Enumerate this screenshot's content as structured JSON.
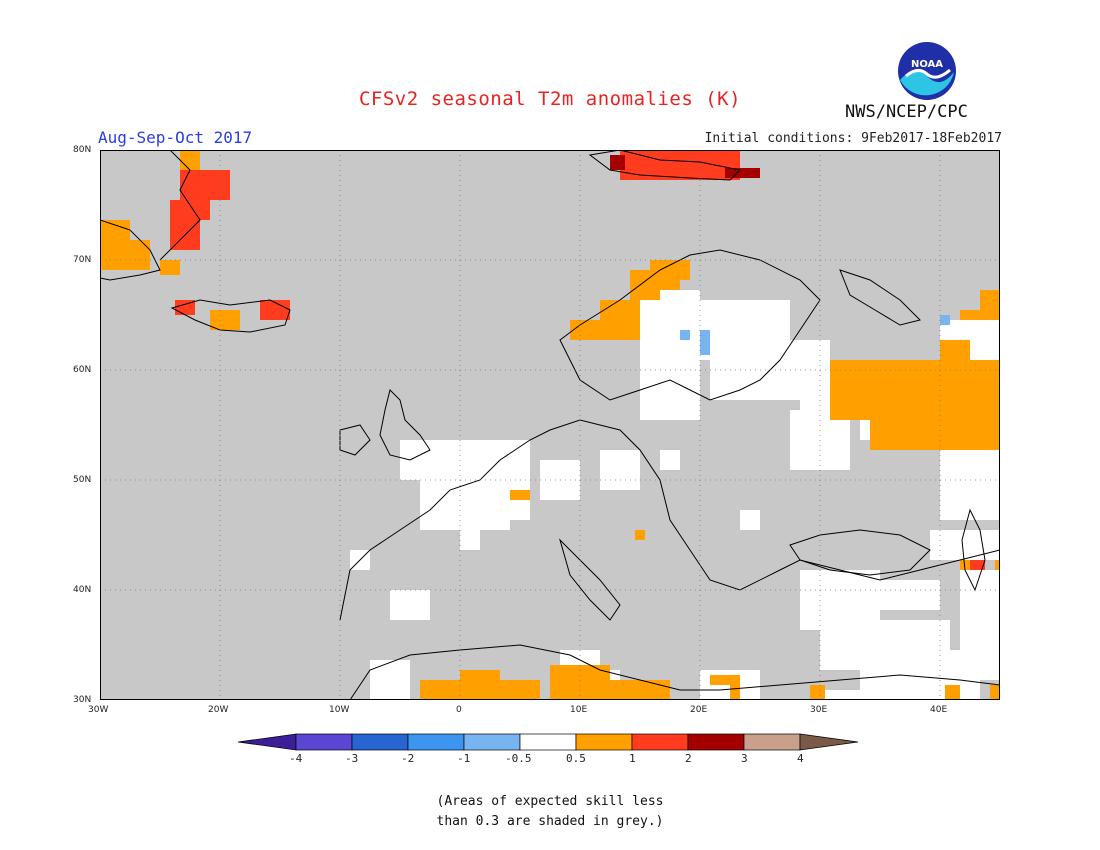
{
  "title": "CFSv2 seasonal T2m anomalies (K)",
  "season": "Aug-Sep-Oct 2017",
  "initial_conditions": "Initial conditions: 9Feb2017-18Feb2017",
  "agency": "NWS/NCEP/CPC",
  "logo_text": "NOAA",
  "map": {
    "lat_labels": [
      "80N",
      "70N",
      "60N",
      "50N",
      "40N",
      "30N"
    ],
    "lon_labels": [
      "30W",
      "20W",
      "10W",
      "0",
      "10E",
      "20E",
      "30E",
      "40E"
    ],
    "colors": {
      "grey_low_skill": "#c8c8c8",
      "land_outline": "#000000",
      "ocean_nodata": "#c8c8c8",
      "warm_0_5_1": "#ffa000",
      "warm_1_2": "#ff3c1e",
      "warm_2_3": "#a50000",
      "cool_neg0_5_neg1": "#78b4ff"
    }
  },
  "colorbar": {
    "ticks": [
      "-4",
      "-3",
      "-2",
      "-1",
      "-0.5",
      "0.5",
      "1",
      "2",
      "3",
      "4"
    ],
    "colors": [
      "#3c1e96",
      "#5a46d2",
      "#2864d2",
      "#3c96f0",
      "#78b4f0",
      "#ffffff",
      "#ffa000",
      "#ff3c1e",
      "#a50000",
      "#c8a08c",
      "#7a5a46"
    ]
  },
  "note_line1": "(Areas of expected skill less",
  "note_line2": "than 0.3 are shaded in grey.)"
}
